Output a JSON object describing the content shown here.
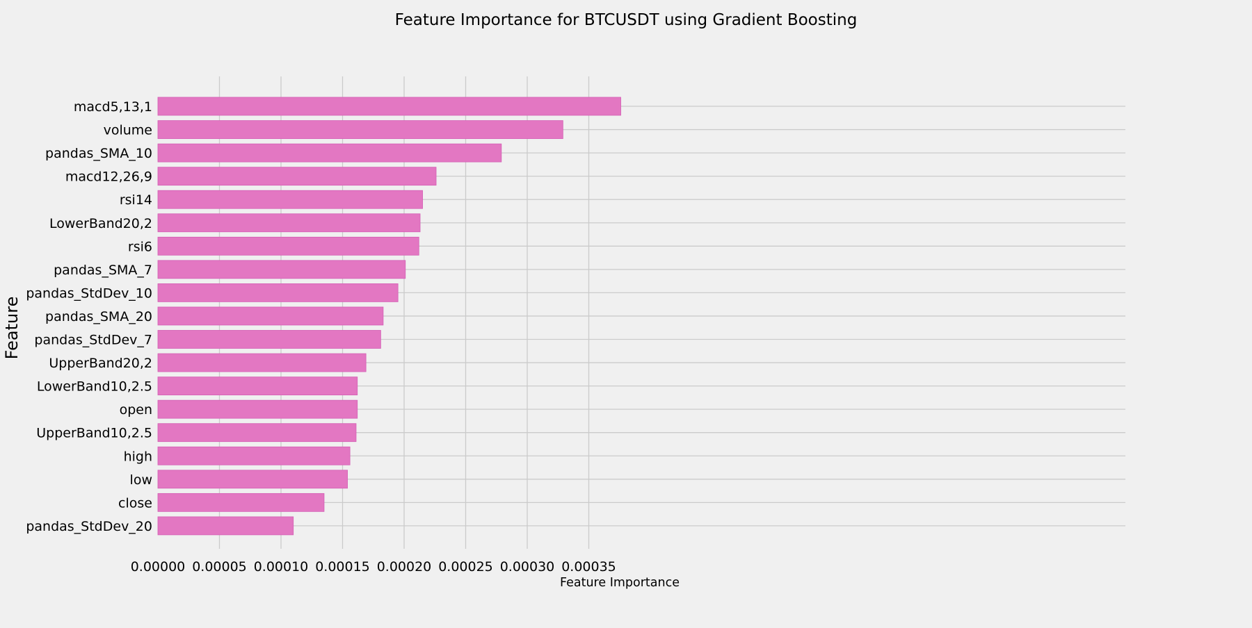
{
  "chart_data": {
    "type": "bar",
    "orientation": "horizontal",
    "title": "Feature Importance for BTCUSDT using Gradient Boosting",
    "xlabel": "Feature Importance",
    "ylabel": "Feature",
    "xlim": [
      0,
      0.000395
    ],
    "xticks": [
      0,
      5e-05,
      0.0001,
      0.00015,
      0.0002,
      0.00025,
      0.0003,
      0.00035
    ],
    "xtick_labels": [
      "0.00000",
      "0.00005",
      "0.00010",
      "0.00015",
      "0.00020",
      "0.00025",
      "0.00030",
      "0.00035"
    ],
    "grid": true,
    "bar_color": "#e377c2",
    "background_color": "#f0f0f0",
    "categories": [
      "macd5,13,1",
      "volume",
      "pandas_SMA_10",
      "macd12,26,9",
      "rsi14",
      "LowerBand20,2",
      "rsi6",
      "pandas_SMA_7",
      "pandas_StdDev_10",
      "pandas_SMA_20",
      "pandas_StdDev_7",
      "UpperBand20,2",
      "LowerBand10,2.5",
      "open",
      "UpperBand10,2.5",
      "high",
      "low",
      "close",
      "pandas_StdDev_20"
    ],
    "values": [
      0.000376,
      0.000329,
      0.000279,
      0.000226,
      0.000215,
      0.000213,
      0.000212,
      0.000201,
      0.000195,
      0.000183,
      0.000181,
      0.000169,
      0.000162,
      0.000162,
      0.000161,
      0.000156,
      0.000154,
      0.000135,
      0.00011
    ]
  }
}
